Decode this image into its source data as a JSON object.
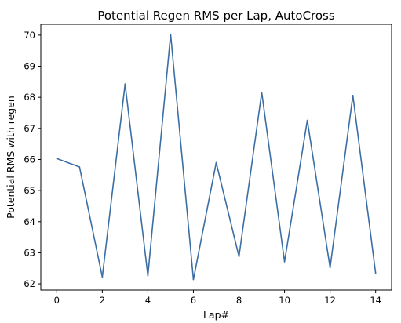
{
  "chart_data": {
    "type": "line",
    "title": "Potential Regen RMS per Lap, AutoCross",
    "xlabel": "Lap#",
    "ylabel": "Potential RMS with regen",
    "xlim": [
      -0.7,
      14.7
    ],
    "ylim": [
      61.8,
      70.35
    ],
    "x_ticks": [
      0,
      2,
      4,
      6,
      8,
      10,
      12,
      14
    ],
    "y_ticks": [
      62,
      63,
      64,
      65,
      66,
      67,
      68,
      69,
      70
    ],
    "grid": false,
    "line_color": "#3b6ea5",
    "series": [
      {
        "x": [
          0,
          1,
          2,
          3,
          4,
          5,
          6,
          7,
          8,
          9,
          10,
          11,
          12,
          13,
          14
        ],
        "values": [
          66.03,
          65.76,
          62.22,
          68.43,
          62.26,
          70.03,
          62.14,
          65.9,
          62.88,
          68.16,
          62.71,
          67.26,
          62.52,
          68.06,
          62.34
        ]
      }
    ]
  }
}
